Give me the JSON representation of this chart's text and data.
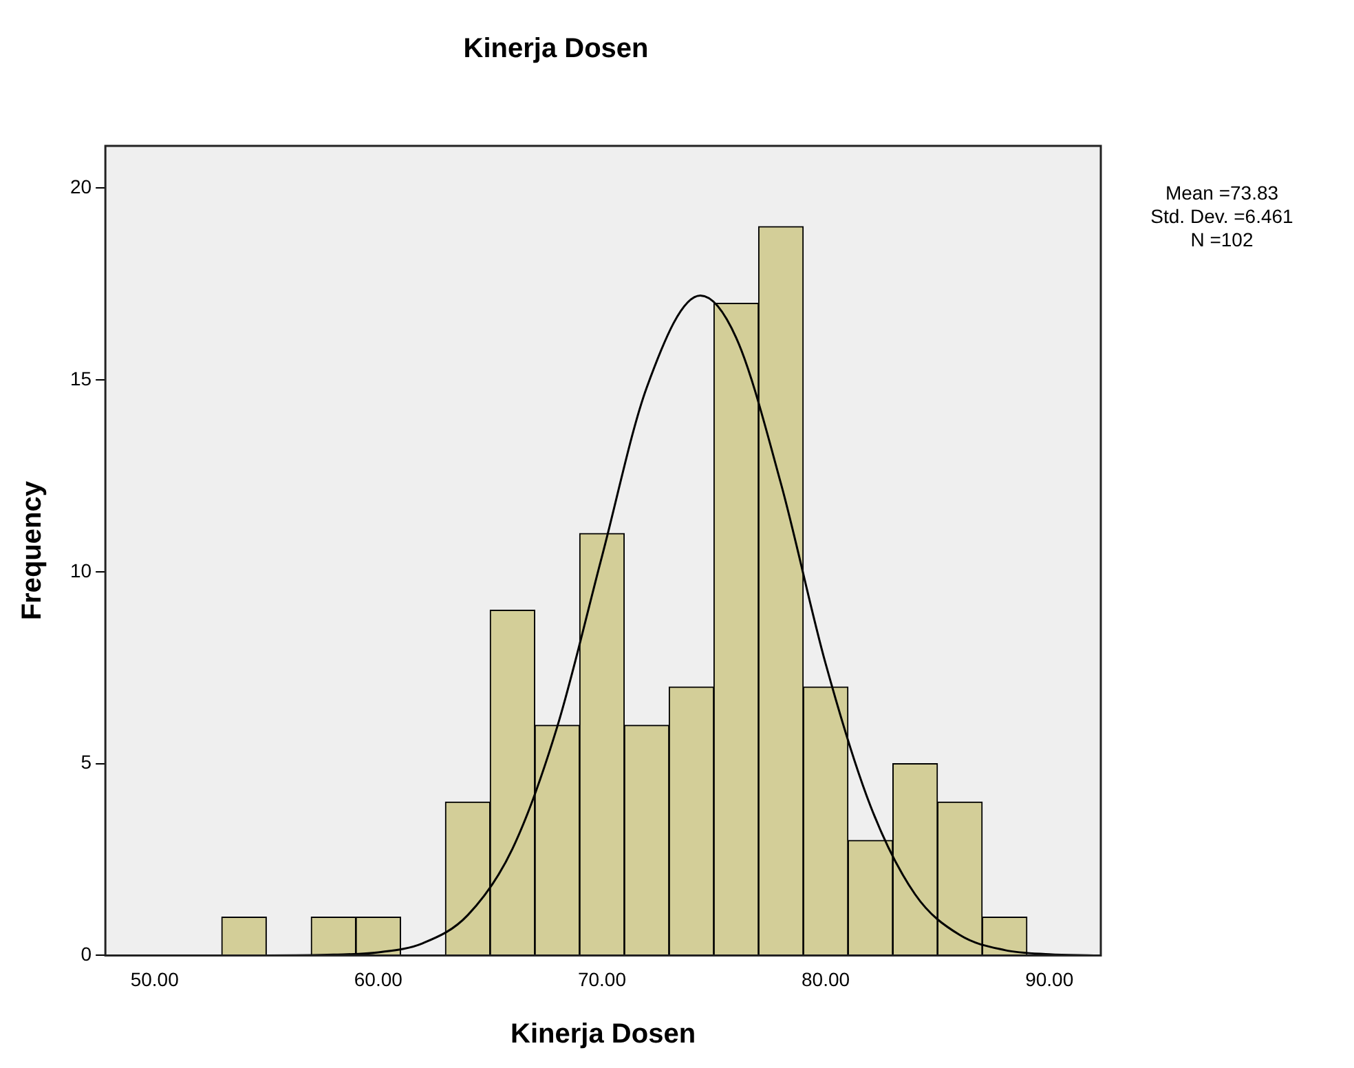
{
  "chart_data": {
    "type": "histogram",
    "title": "Kinerja Dosen",
    "xlabel": "Kinerja Dosen",
    "ylabel": "Frequency",
    "bins": [
      53,
      55,
      57,
      59,
      61,
      63,
      65,
      67,
      69,
      71,
      73,
      75,
      77,
      79,
      81,
      83,
      85,
      87,
      89
    ],
    "values": [
      1,
      0,
      1,
      1,
      0,
      4,
      9,
      6,
      11,
      6,
      7,
      17,
      19,
      7,
      3,
      5,
      4,
      1
    ],
    "color": "#d3ce98",
    "series": [
      {
        "type": "line",
        "color": "#000000",
        "x": [
          50,
          55,
          58,
          60,
          62,
          64,
          66,
          68,
          70,
          72,
          74.4,
          76,
          78,
          80,
          82,
          84,
          86,
          88,
          90,
          92
        ],
        "values": [
          0,
          0,
          0.02,
          0.08,
          0.32,
          1.05,
          2.78,
          5.96,
          10.4,
          14.8,
          17.2,
          16.1,
          12.3,
          7.6,
          3.9,
          1.59,
          0.53,
          0.14,
          0.03,
          0
        ]
      }
    ],
    "xlim": [
      47.8,
      92.3
    ],
    "xticks": [
      {
        "value": 50,
        "label": "50.00"
      },
      {
        "value": 60,
        "label": "60.00"
      },
      {
        "value": 70,
        "label": "70.00"
      },
      {
        "value": 80,
        "label": "80.00"
      },
      {
        "value": 90,
        "label": "90.00"
      }
    ],
    "ylim": [
      0,
      21.1
    ],
    "yticks": [
      0,
      5,
      10,
      15,
      20
    ],
    "grid": false,
    "legend": false,
    "marker": "none",
    "annotations": [
      "Mean =73.83",
      "Std. Dev. =6.461",
      "N =102"
    ]
  }
}
